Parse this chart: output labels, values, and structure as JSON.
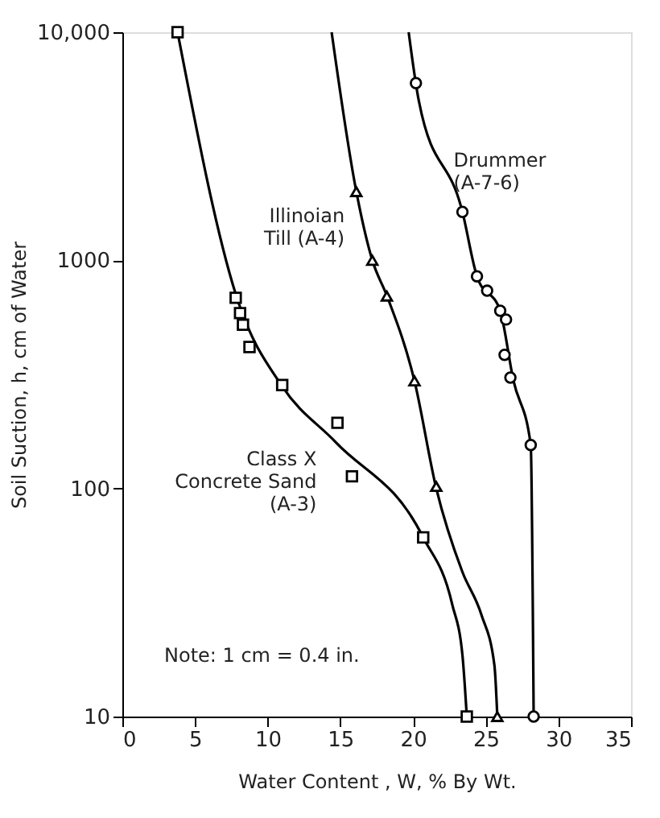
{
  "chart_data": {
    "type": "scatter",
    "xlabel": "Water  Content , W, % By Wt.",
    "ylabel": "Soil  Suction, h, cm of  Water",
    "log": "y",
    "xlim": [
      0,
      35
    ],
    "xticks": [
      0,
      5,
      10,
      15,
      20,
      25,
      30,
      35
    ],
    "ylim": [
      10,
      10000
    ],
    "yticks": [
      10,
      100,
      1000,
      {
        "value": 10000,
        "label": "10,000"
      }
    ],
    "grid": false,
    "series": [
      {
        "marker": "square",
        "color": "#000000",
        "x": [
          3.8,
          7.8,
          8.1,
          8.3,
          8.75,
          11.0,
          14.8,
          15.8,
          20.7,
          23.7
        ],
        "values": [
          10000,
          685,
          587,
          522,
          417,
          284,
          194,
          113,
          61,
          10
        ]
      },
      {
        "marker": "triangle",
        "color": "#000000",
        "x": [
          16.1,
          17.2,
          18.2,
          20.1,
          21.6,
          25.8
        ],
        "values": [
          2000,
          1000,
          697,
          296,
          102,
          10
        ]
      },
      {
        "marker": "circle",
        "color": "#000000",
        "x": [
          20.2,
          23.4,
          24.4,
          25.1,
          26.0,
          26.4,
          26.3,
          26.7,
          28.1,
          28.3
        ],
        "values": [
          5980,
          1630,
          851,
          736,
          601,
          550,
          385,
          306,
          155,
          10
        ]
      },
      {
        "type": "line",
        "marker": "none",
        "line_style": "solid",
        "color": "#000000",
        "x": [
          3.8,
          8.0,
          11.0,
          14.7,
          20.7,
          22.7,
          23.4,
          23.7
        ],
        "values": [
          10000,
          650,
          280,
          159,
          61,
          31,
          18.6,
          10
        ]
      },
      {
        "type": "line",
        "marker": "none",
        "line_style": "solid",
        "color": "#000000",
        "x": [
          14.4,
          16.1,
          17.2,
          18.2,
          20.1,
          21.6,
          23.4,
          24.7,
          25.6,
          25.8
        ],
        "values": [
          10000,
          2000,
          1000,
          700,
          296,
          100,
          43,
          28,
          16.8,
          10
        ]
      },
      {
        "type": "line",
        "marker": "none",
        "line_style": "solid",
        "color": "#000000",
        "x": [
          19.7,
          20.4,
          23.4,
          24.4,
          26.0,
          26.9,
          28.1,
          28.3
        ],
        "values": [
          10000,
          5000,
          1630,
          851,
          600,
          299,
          155,
          10
        ]
      }
    ],
    "annotations": [
      {
        "text": "Class  X\nConcrete  Sand\n(A-3)",
        "x": 14.7,
        "y": 159
      },
      {
        "text": "Illinoian\nTill (A-4)",
        "x": 16.4,
        "y": 1620
      },
      {
        "text": "Drummer\n(A-7-6)",
        "x": 21.9,
        "y": 2570
      },
      "Note:  1 cm = 0.4 in."
    ]
  }
}
